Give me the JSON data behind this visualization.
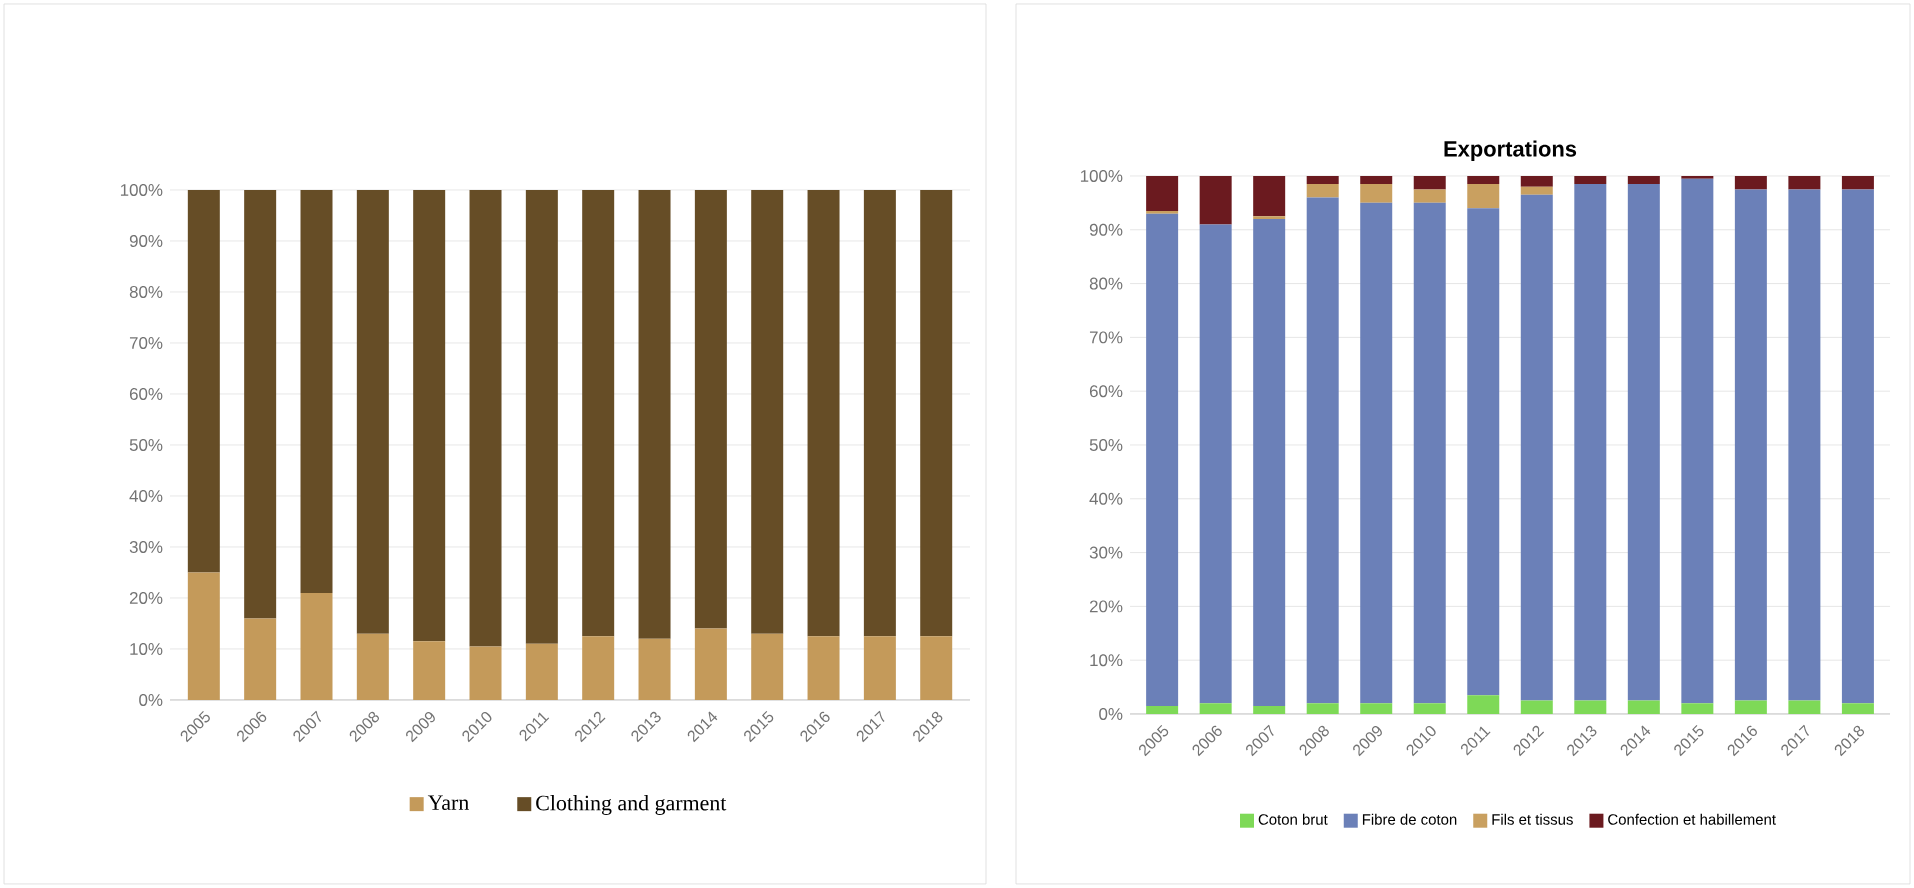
{
  "chart_data": [
    {
      "type": "bar",
      "stacked": true,
      "categories": [
        "2005",
        "2006",
        "2007",
        "2008",
        "2009",
        "2010",
        "2011",
        "2012",
        "2013",
        "2014",
        "2015",
        "2016",
        "2017",
        "2018"
      ],
      "series": [
        {
          "name": "Yarn",
          "color": "#c49a5a",
          "values": [
            25,
            16,
            21,
            13,
            11.5,
            10.5,
            11,
            12.5,
            12,
            14,
            13,
            12.5,
            12.5,
            12.5
          ]
        },
        {
          "name": "Clothing and garment",
          "color": "#664d26",
          "values": [
            75,
            84,
            79,
            87,
            88.5,
            89.5,
            89,
            87.5,
            88,
            86,
            87,
            87.5,
            87.5,
            87.5
          ]
        }
      ],
      "ylim": [
        0,
        100
      ],
      "yticks": [
        {
          "value": 0,
          "label": "0%"
        },
        {
          "value": 10,
          "label": "10%"
        },
        {
          "value": 20,
          "label": "20%"
        },
        {
          "value": 30,
          "label": "30%"
        },
        {
          "value": 40,
          "label": "40%"
        },
        {
          "value": 50,
          "label": "50%"
        },
        {
          "value": 60,
          "label": "60%"
        },
        {
          "value": 70,
          "label": "70%"
        },
        {
          "value": 80,
          "label": "80%"
        },
        {
          "value": 90,
          "label": "90%"
        },
        {
          "value": 100,
          "label": "100%"
        }
      ],
      "grid": "y",
      "legend": "bottom"
    },
    {
      "type": "bar",
      "stacked": true,
      "title": "Exportations",
      "categories": [
        "2005",
        "2006",
        "2007",
        "2008",
        "2009",
        "2010",
        "2011",
        "2012",
        "2013",
        "2014",
        "2015",
        "2016",
        "2017",
        "2018"
      ],
      "series": [
        {
          "name": "Coton brut",
          "color": "#7ed957",
          "values": [
            1.5,
            2,
            1.5,
            2,
            2,
            2,
            3.5,
            2.5,
            2.5,
            2.5,
            2,
            2.5,
            2.5,
            2
          ]
        },
        {
          "name": "Fibre de coton",
          "color": "#6b80b8",
          "values": [
            91.5,
            89,
            90.5,
            94,
            93,
            93,
            90.5,
            94,
            96,
            96,
            97.5,
            95,
            95,
            95.5
          ]
        },
        {
          "name": "Fils et tissus",
          "color": "#c9a060",
          "values": [
            0.5,
            0,
            0.5,
            2.5,
            3.5,
            2.5,
            4.5,
            1.5,
            0,
            0,
            0,
            0,
            0,
            0
          ]
        },
        {
          "name": "Confection et habillement",
          "color": "#6b1a1f",
          "values": [
            6.5,
            9,
            7.5,
            1.5,
            1.5,
            2.5,
            1.5,
            2,
            1.5,
            1.5,
            0.5,
            2.5,
            2.5,
            2.5
          ]
        }
      ],
      "ylim": [
        0,
        100
      ],
      "yticks": [
        {
          "value": 0,
          "label": "0%"
        },
        {
          "value": 10,
          "label": "10%"
        },
        {
          "value": 20,
          "label": "20%"
        },
        {
          "value": 30,
          "label": "30%"
        },
        {
          "value": 40,
          "label": "40%"
        },
        {
          "value": 50,
          "label": "50%"
        },
        {
          "value": 60,
          "label": "60%"
        },
        {
          "value": 70,
          "label": "70%"
        },
        {
          "value": 80,
          "label": "80%"
        },
        {
          "value": 90,
          "label": "90%"
        },
        {
          "value": 100,
          "label": "100%"
        }
      ],
      "grid": "y",
      "legend": "bottom"
    }
  ]
}
